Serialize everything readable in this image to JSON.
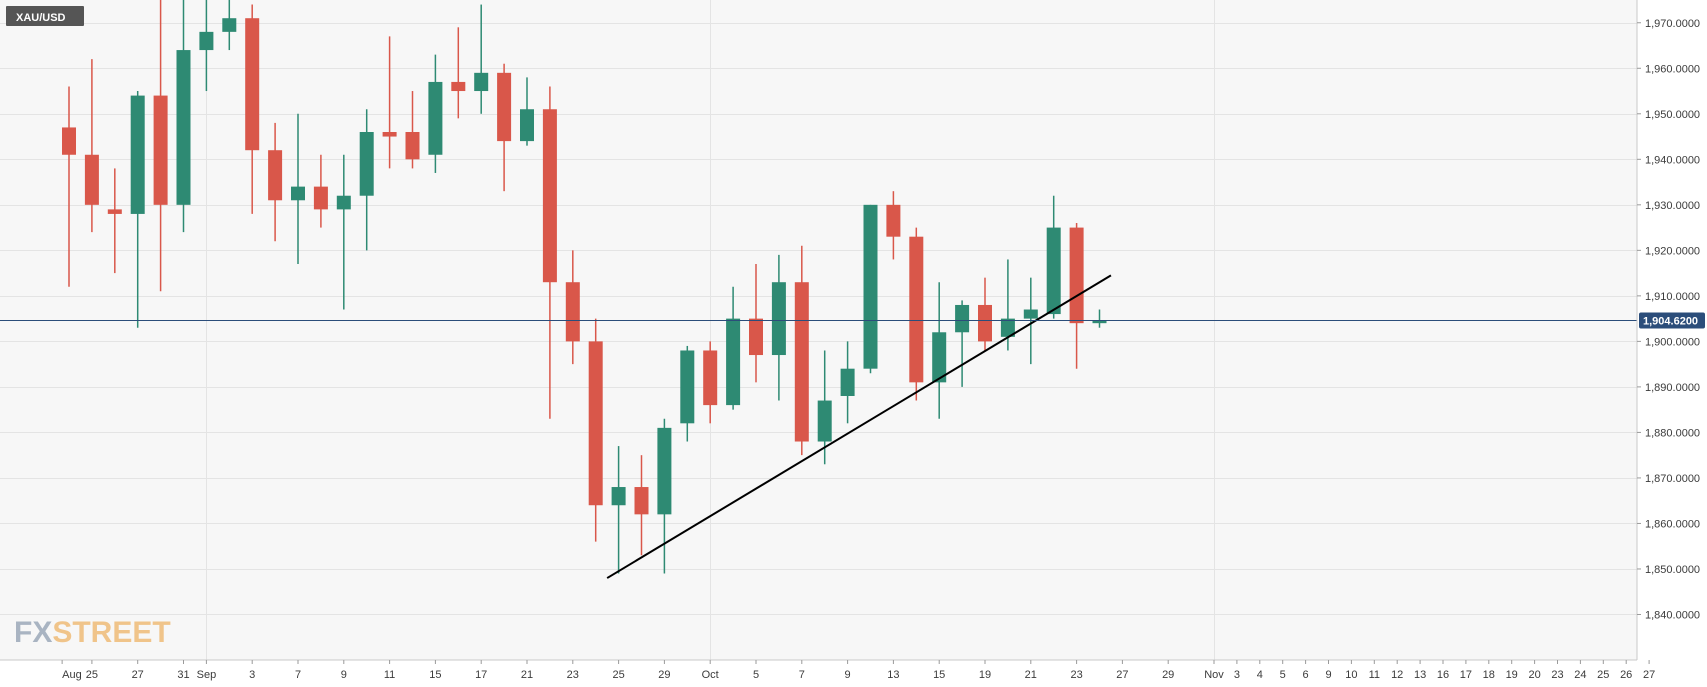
{
  "symbol": "XAU/USD",
  "logo": "FXSTREET",
  "colors": {
    "up": "#2e8a73",
    "down": "#d9574a",
    "background": "#f7f7f7",
    "grid": "#e4e4e4",
    "price_line": "#2b4d7a",
    "badge": "#2b4d7a",
    "trendline": "#000000",
    "symbol_bg": "#555555",
    "logo_fx": "#a9b4c2",
    "logo_street": "#f0c48a"
  },
  "chart_data": {
    "type": "candlestick",
    "ylim": [
      1830,
      1975
    ],
    "y_ticks": [
      1840,
      1850,
      1860,
      1870,
      1880,
      1890,
      1900,
      1910,
      1920,
      1930,
      1940,
      1950,
      1960,
      1970
    ],
    "y_tick_labels": [
      "1,840.0000",
      "1,850.0000",
      "1,860.0000",
      "1,870.0000",
      "1,880.0000",
      "1,890.0000",
      "1,900.0000",
      "1,910.0000",
      "1,920.0000",
      "1,930.0000",
      "1,940.0000",
      "1,950.0000",
      "1,960.0000",
      "1,970.0000"
    ],
    "current_price": 1904.62,
    "current_price_label": "1,904.6200",
    "x_labels": [
      {
        "label": "Aug",
        "slot": -0.3
      },
      {
        "label": "25",
        "slot": 1
      },
      {
        "label": "27",
        "slot": 3
      },
      {
        "label": "31",
        "slot": 5
      },
      {
        "label": "Sep",
        "slot": 6
      },
      {
        "label": "3",
        "slot": 8
      },
      {
        "label": "7",
        "slot": 10
      },
      {
        "label": "9",
        "slot": 12
      },
      {
        "label": "11",
        "slot": 14
      },
      {
        "label": "15",
        "slot": 16
      },
      {
        "label": "17",
        "slot": 18
      },
      {
        "label": "21",
        "slot": 20
      },
      {
        "label": "23",
        "slot": 22
      },
      {
        "label": "25",
        "slot": 24
      },
      {
        "label": "29",
        "slot": 26
      },
      {
        "label": "Oct",
        "slot": 28
      },
      {
        "label": "5",
        "slot": 30
      },
      {
        "label": "7",
        "slot": 32
      },
      {
        "label": "9",
        "slot": 34
      },
      {
        "label": "13",
        "slot": 36
      },
      {
        "label": "15",
        "slot": 38
      },
      {
        "label": "19",
        "slot": 40
      },
      {
        "label": "21",
        "slot": 42
      },
      {
        "label": "23",
        "slot": 44
      },
      {
        "label": "27",
        "slot": 46
      },
      {
        "label": "29",
        "slot": 48
      },
      {
        "label": "Nov",
        "slot": 50
      },
      {
        "label": "3",
        "slot": 51
      },
      {
        "label": "4",
        "slot": 52
      },
      {
        "label": "5",
        "slot": 53
      },
      {
        "label": "6",
        "slot": 54
      },
      {
        "label": "9",
        "slot": 55
      },
      {
        "label": "10",
        "slot": 56
      },
      {
        "label": "11",
        "slot": 57
      },
      {
        "label": "12",
        "slot": 58
      },
      {
        "label": "13",
        "slot": 59
      },
      {
        "label": "16",
        "slot": 60
      },
      {
        "label": "17",
        "slot": 61
      },
      {
        "label": "18",
        "slot": 62
      },
      {
        "label": "19",
        "slot": 63
      },
      {
        "label": "20",
        "slot": 64
      },
      {
        "label": "23",
        "slot": 65
      },
      {
        "label": "24",
        "slot": 66
      },
      {
        "label": "25",
        "slot": 67
      },
      {
        "label": "26",
        "slot": 68
      },
      {
        "label": "27",
        "slot": 69
      }
    ],
    "vertical_grid_slots": [
      6,
      28,
      50
    ],
    "candles": [
      {
        "o": 1947,
        "h": 1956,
        "l": 1912,
        "c": 1941
      },
      {
        "o": 1941,
        "h": 1962,
        "l": 1924,
        "c": 1930
      },
      {
        "o": 1929,
        "h": 1938,
        "l": 1915,
        "c": 1928
      },
      {
        "o": 1928,
        "h": 1955,
        "l": 1903,
        "c": 1954
      },
      {
        "o": 1954,
        "h": 1975,
        "l": 1911,
        "c": 1930
      },
      {
        "o": 1930,
        "h": 1975,
        "l": 1924,
        "c": 1964
      },
      {
        "o": 1964,
        "h": 1975,
        "l": 1955,
        "c": 1968
      },
      {
        "o": 1968,
        "h": 1975,
        "l": 1964,
        "c": 1971
      },
      {
        "o": 1971,
        "h": 1974,
        "l": 1928,
        "c": 1942
      },
      {
        "o": 1942,
        "h": 1948,
        "l": 1922,
        "c": 1931
      },
      {
        "o": 1931,
        "h": 1950,
        "l": 1917,
        "c": 1934
      },
      {
        "o": 1934,
        "h": 1941,
        "l": 1925,
        "c": 1929
      },
      {
        "o": 1929,
        "h": 1941,
        "l": 1907,
        "c": 1932
      },
      {
        "o": 1932,
        "h": 1951,
        "l": 1920,
        "c": 1946
      },
      {
        "o": 1946,
        "h": 1967,
        "l": 1938,
        "c": 1945
      },
      {
        "o": 1946,
        "h": 1955,
        "l": 1938,
        "c": 1940
      },
      {
        "o": 1941,
        "h": 1963,
        "l": 1937,
        "c": 1957
      },
      {
        "o": 1957,
        "h": 1969,
        "l": 1949,
        "c": 1955
      },
      {
        "o": 1955,
        "h": 1974,
        "l": 1950,
        "c": 1959
      },
      {
        "o": 1959,
        "h": 1961,
        "l": 1933,
        "c": 1944
      },
      {
        "o": 1944,
        "h": 1958,
        "l": 1943,
        "c": 1951
      },
      {
        "o": 1951,
        "h": 1956,
        "l": 1883,
        "c": 1913
      },
      {
        "o": 1913,
        "h": 1920,
        "l": 1895,
        "c": 1900
      },
      {
        "o": 1900,
        "h": 1905,
        "l": 1856,
        "c": 1864
      },
      {
        "o": 1864,
        "h": 1877,
        "l": 1849,
        "c": 1868
      },
      {
        "o": 1868,
        "h": 1875,
        "l": 1853,
        "c": 1862
      },
      {
        "o": 1862,
        "h": 1883,
        "l": 1849,
        "c": 1881
      },
      {
        "o": 1882,
        "h": 1899,
        "l": 1878,
        "c": 1898
      },
      {
        "o": 1898,
        "h": 1900,
        "l": 1882,
        "c": 1886
      },
      {
        "o": 1886,
        "h": 1912,
        "l": 1885,
        "c": 1905
      },
      {
        "o": 1905,
        "h": 1917,
        "l": 1891,
        "c": 1897
      },
      {
        "o": 1897,
        "h": 1919,
        "l": 1887,
        "c": 1913
      },
      {
        "o": 1913,
        "h": 1921,
        "l": 1875,
        "c": 1878
      },
      {
        "o": 1878,
        "h": 1898,
        "l": 1873,
        "c": 1887
      },
      {
        "o": 1888,
        "h": 1900,
        "l": 1882,
        "c": 1894
      },
      {
        "o": 1894,
        "h": 1930,
        "l": 1893,
        "c": 1930
      },
      {
        "o": 1930,
        "h": 1933,
        "l": 1918,
        "c": 1923
      },
      {
        "o": 1923,
        "h": 1925,
        "l": 1887,
        "c": 1891
      },
      {
        "o": 1891,
        "h": 1913,
        "l": 1883,
        "c": 1902
      },
      {
        "o": 1902,
        "h": 1909,
        "l": 1890,
        "c": 1908
      },
      {
        "o": 1908,
        "h": 1914,
        "l": 1898,
        "c": 1900
      },
      {
        "o": 1901,
        "h": 1918,
        "l": 1898,
        "c": 1905
      },
      {
        "o": 1905,
        "h": 1914,
        "l": 1895,
        "c": 1907
      },
      {
        "o": 1906,
        "h": 1932,
        "l": 1905,
        "c": 1925
      },
      {
        "o": 1925,
        "h": 1926,
        "l": 1894,
        "c": 1904
      },
      {
        "o": 1904,
        "h": 1907,
        "l": 1903,
        "c": 1904.62
      }
    ],
    "trendline": {
      "start": {
        "slot": 23.5,
        "price": 1848
      },
      "end": {
        "slot": 45.5,
        "price": 1914.5
      }
    }
  }
}
